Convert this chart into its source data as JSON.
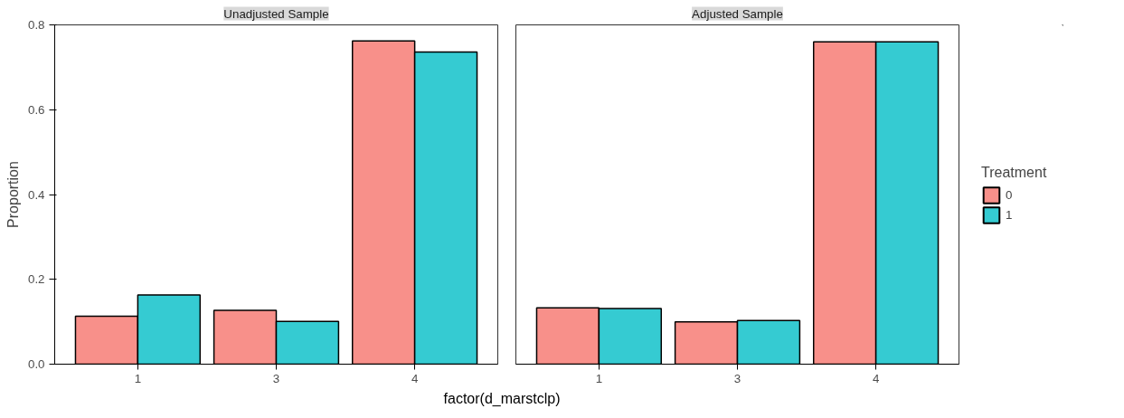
{
  "chart_data": [
    {
      "type": "bar",
      "title": "Unadjusted Sample",
      "ylabel": "Proportion",
      "legend": "right",
      "legend_title": "Treatment",
      "xlabel": "factor(d_marstclp)",
      "categories": [
        "1",
        "3",
        "4"
      ],
      "ylim": [
        0,
        0.8
      ],
      "yticks": [
        {
          "value": 0,
          "label": "0.0"
        },
        {
          "value": 0.2,
          "label": "0.2"
        },
        {
          "value": 0.4,
          "label": "0.4"
        },
        {
          "value": 0.6,
          "label": "0.6"
        },
        {
          "value": 0.8,
          "label": "0.8"
        }
      ],
      "series": [
        {
          "name": "0",
          "color": "#f8908a",
          "values": [
            0.113,
            0.127,
            0.762
          ]
        },
        {
          "name": "1",
          "color": "#35cbd2",
          "values": [
            0.163,
            0.101,
            0.736
          ]
        }
      ]
    },
    {
      "type": "bar",
      "title": "Adjusted Sample",
      "categories": [
        "1",
        "3",
        "4"
      ],
      "ylim": [
        0,
        0.8
      ],
      "tick_labels": "x",
      "series": [
        {
          "name": "0",
          "color": "#f8908a",
          "values": [
            0.133,
            0.1,
            0.76
          ]
        },
        {
          "name": "1",
          "color": "#35cbd2",
          "values": [
            0.131,
            0.103,
            0.76
          ]
        }
      ]
    }
  ]
}
